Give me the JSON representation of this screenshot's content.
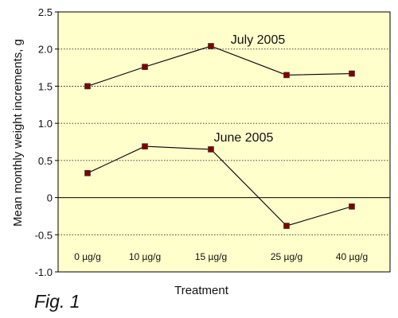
{
  "figure": {
    "caption": "Fig. 1"
  },
  "colors": {
    "plot_background": "#FFFFCC",
    "line": "#000000",
    "marker_fill": "#800000",
    "marker_stroke": "#333333",
    "grid": "#000000",
    "text": "#111111"
  },
  "chart_data": {
    "type": "line",
    "title": "",
    "xlabel": "Treatment",
    "ylabel": "Mean monthly weight increments, g",
    "categories": [
      "0 µg/g",
      "10 µg/g",
      "15 µg/g",
      "25 µg/g",
      "40 µg/g"
    ],
    "ylim": [
      -1.0,
      2.5
    ],
    "yticks": [
      "2.5",
      "2.0",
      "1.5",
      "1.0",
      "0.5",
      "0",
      "-0.5",
      "-1.0"
    ],
    "grid": "horizontal dotted",
    "legend": "none",
    "series": [
      {
        "name": "July 2005",
        "values": [
          1.5,
          1.76,
          2.04,
          1.65,
          1.67
        ]
      },
      {
        "name": "June 2005",
        "values": [
          0.33,
          0.69,
          0.65,
          -0.38,
          -0.12
        ]
      }
    ]
  }
}
